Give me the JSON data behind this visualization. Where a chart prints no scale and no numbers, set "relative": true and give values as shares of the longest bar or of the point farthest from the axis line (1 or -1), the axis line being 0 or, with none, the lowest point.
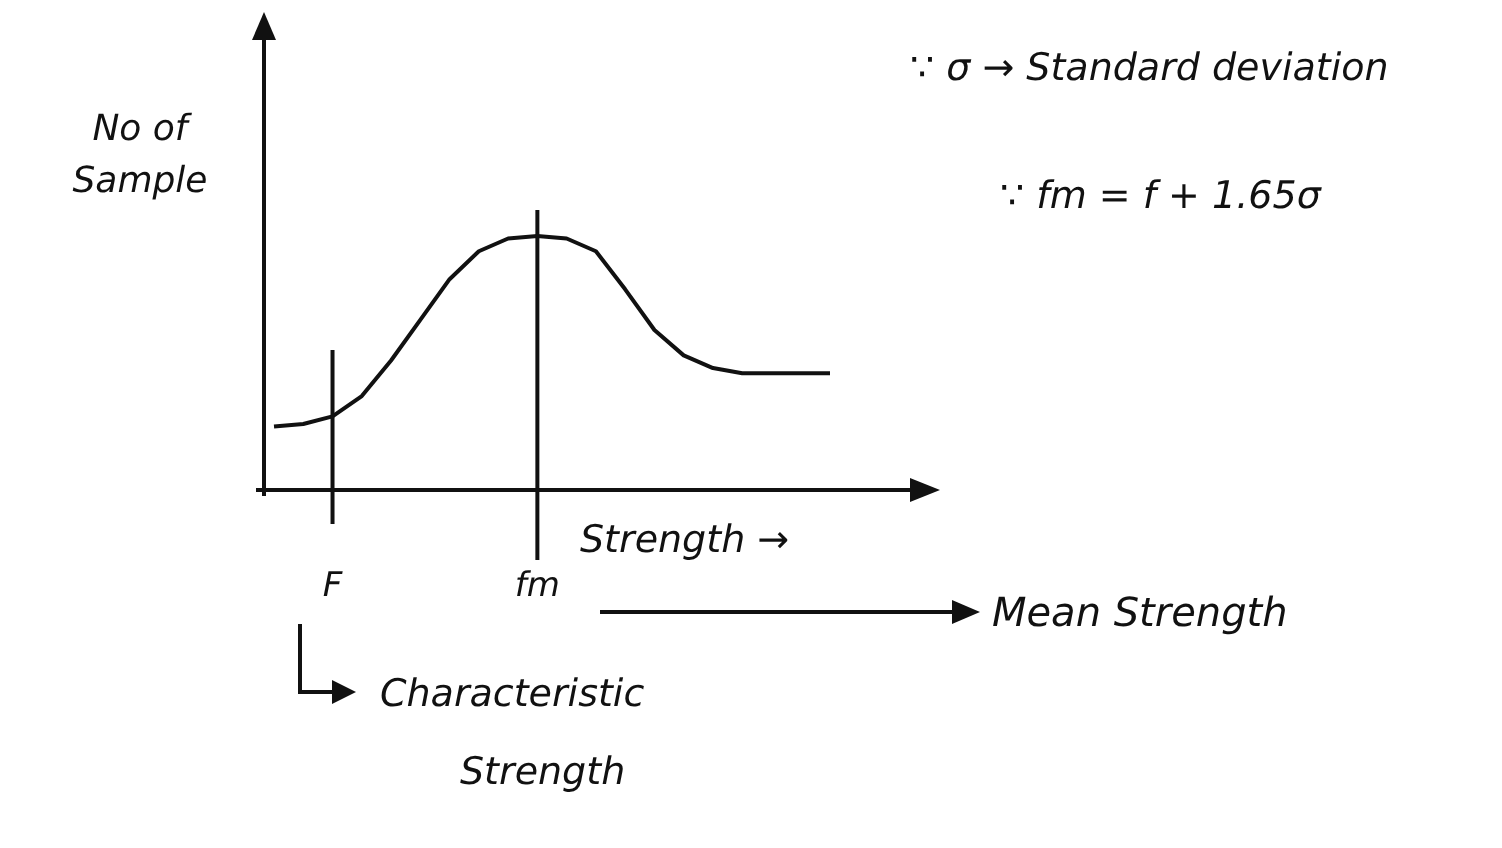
{
  "chart_data": {
    "type": "line",
    "relative": true,
    "xlabel": "Strength →",
    "ylabel": "No of Sample",
    "color": "#111111",
    "categories": [
      null,
      null,
      "F",
      null,
      null,
      null,
      null,
      null,
      null,
      "fm",
      null,
      null,
      null,
      null,
      null,
      null,
      null,
      null,
      null,
      null
    ],
    "values": [
      0.25,
      0.26,
      0.29,
      0.37,
      0.51,
      0.67,
      0.83,
      0.94,
      0.99,
      1.0,
      0.99,
      0.94,
      0.79,
      0.63,
      0.53,
      0.48,
      0.46,
      0.46,
      0.46,
      0.46
    ],
    "ref_lines": [
      {
        "axis": "x",
        "value": "F"
      },
      {
        "axis": "x",
        "value": "fm"
      }
    ],
    "annotations": [
      "∵ σ → Standard deviation",
      "∵ fm = f + 1.65σ",
      "Mean Strength",
      "Characteristic Strength"
    ],
    "tick_labels": "x",
    "line_style": "solid"
  }
}
